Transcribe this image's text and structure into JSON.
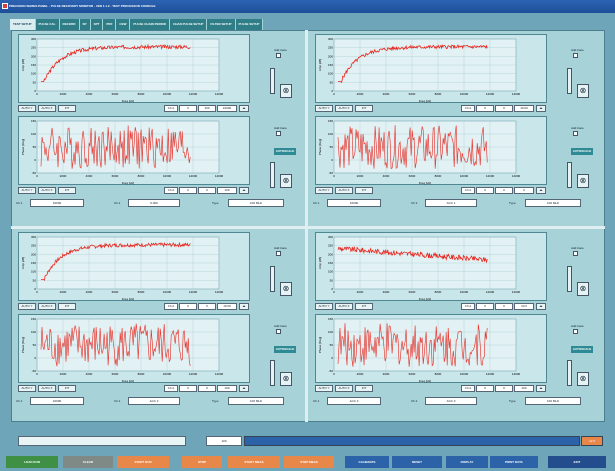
{
  "window": {
    "title": "PRECISION SERIES PANEL - PULSE RECOVERY MONITOR - VER 1.1.2 - TEST PROCESSOR CONSOLE"
  },
  "tabs": [
    "TEST SETUP",
    "PULSE CAL",
    "RECORD",
    "SP",
    "SPT",
    "PRF",
    "CEW",
    "PULSE CHAIN PERIOD",
    "CHAN PULSE SETUP",
    "FILTER SETUP",
    "PULSE SETUP"
  ],
  "colors": {
    "trace": "#e8261e",
    "panel": "#a7d2d8",
    "plot_bg": "#c9e6ea",
    "accent_teal": "#2e8a94",
    "green": "#3f8f45",
    "orange": "#e8874a",
    "blue": "#2c63a8"
  },
  "icons": {
    "zoom": "magnifier-cross-icon",
    "checkbox": "checkbox-icon"
  },
  "labels": {
    "check_a": "Add trace",
    "check_b": "Add trace",
    "autoscale": "AUTOSCALE",
    "f1": "Ch 1",
    "f2": "Ch 2",
    "f3": "Type"
  },
  "controls": {
    "btn1": "AUTO Y",
    "btn2": "AUTO X",
    "btn3": "FIT",
    "spin1": "Ch A"
  },
  "quadrants": [
    {
      "spins": [
        "0",
        "100",
        "10000"
      ],
      "spins2": [
        "0",
        "0",
        "100"
      ],
      "info": [
        "10000",
        "0.000",
        "100 MHz"
      ]
    },
    {
      "spins": [
        "0",
        "0",
        "10.00"
      ],
      "spins2": [
        "0",
        "0",
        "0"
      ],
      "info": [
        "10000",
        "ACC 1",
        "100 MHz"
      ]
    },
    {
      "spins": [
        "0",
        "0",
        "10.00"
      ],
      "spins2": [
        "0",
        "0",
        "100"
      ],
      "info": [
        "10000",
        "ACC 2",
        "100 MHz"
      ]
    },
    {
      "spins": [
        "0",
        "0",
        "10.0"
      ],
      "spins2": [
        "0",
        "0",
        "100"
      ],
      "info": [
        "ACC 3",
        "ACC 3",
        "100 MHz"
      ]
    }
  ],
  "status": {
    "left": "",
    "mid": "100",
    "right": "12.5"
  },
  "bottom_buttons": [
    "LOAD RUN",
    "CLEAR",
    "START RUN",
    "STOP",
    "START MEAS",
    "STOP MEAS",
    "CALIBRATE",
    "RESET",
    "DISPLAY",
    "PRINT DATA",
    "EXIT"
  ],
  "chart_data": [
    {
      "type": "line",
      "series_kind": "rise",
      "ylim": [
        0,
        300
      ],
      "xlim": [
        0,
        14000
      ],
      "yticks": [
        "300",
        "250",
        "200",
        "150",
        "100",
        "50",
        "0"
      ],
      "xticks": [
        "0",
        "2000",
        "4000",
        "6000",
        "8000",
        "10000",
        "12000",
        "14000"
      ],
      "ylabel": "Amp [dB]",
      "xlabel": "Freq [Hz]"
    },
    {
      "type": "line",
      "series_kind": "noise",
      "ylim": [
        -50,
        150
      ],
      "xlim": [
        0,
        14000
      ],
      "yticks": [
        "150",
        "100",
        "50",
        "0",
        "-50"
      ],
      "xticks": [
        "0",
        "2000",
        "4000",
        "6000",
        "8000",
        "10000",
        "12000",
        "14000"
      ],
      "ylabel": "Phase [Deg]",
      "xlabel": "Freq [Hz]"
    },
    {
      "type": "line",
      "series_kind": "rise",
      "ylim": [
        0,
        300
      ],
      "xlim": [
        0,
        14000
      ],
      "yticks": [
        "300",
        "250",
        "200",
        "150",
        "100",
        "50",
        "0"
      ],
      "xticks": [
        "0",
        "2000",
        "4000",
        "6000",
        "8000",
        "10000",
        "12000",
        "14000"
      ],
      "ylabel": "Amp [dB]",
      "xlabel": "Freq [Hz]"
    },
    {
      "type": "line",
      "series_kind": "noise",
      "ylim": [
        -50,
        150
      ],
      "xlim": [
        0,
        14000
      ],
      "yticks": [
        "150",
        "100",
        "50",
        "0",
        "-50"
      ],
      "xticks": [
        "0",
        "2000",
        "4000",
        "6000",
        "8000",
        "10000",
        "12000",
        "14000"
      ],
      "ylabel": "Phase [Deg]",
      "xlabel": "Freq [Hz]"
    },
    {
      "type": "line",
      "series_kind": "rise",
      "ylim": [
        0,
        300
      ],
      "xlim": [
        0,
        14000
      ],
      "yticks": [
        "300",
        "250",
        "200",
        "150",
        "100",
        "50",
        "0"
      ],
      "xticks": [
        "0",
        "2000",
        "4000",
        "6000",
        "8000",
        "10000",
        "12000",
        "14000"
      ],
      "ylabel": "Amp [dB]",
      "xlabel": "Freq [Hz]"
    },
    {
      "type": "line",
      "series_kind": "noise",
      "ylim": [
        -50,
        150
      ],
      "xlim": [
        0,
        14000
      ],
      "yticks": [
        "150",
        "100",
        "50",
        "0",
        "-50"
      ],
      "xticks": [
        "0",
        "2000",
        "4000",
        "6000",
        "8000",
        "10000",
        "12000",
        "14000"
      ],
      "ylabel": "Phase [Deg]",
      "xlabel": "Freq [Hz]"
    },
    {
      "type": "line",
      "series_kind": "fall",
      "ylim": [
        0,
        300
      ],
      "xlim": [
        0,
        14000
      ],
      "yticks": [
        "300",
        "250",
        "200",
        "150",
        "100",
        "50",
        "0"
      ],
      "xticks": [
        "0",
        "2000",
        "4000",
        "6000",
        "8000",
        "10000",
        "12000",
        "14000"
      ],
      "ylabel": "Amp [dB]",
      "xlabel": "Freq [Hz]"
    },
    {
      "type": "line",
      "series_kind": "noise",
      "ylim": [
        -50,
        150
      ],
      "xlim": [
        0,
        14000
      ],
      "yticks": [
        "150",
        "100",
        "50",
        "0",
        "-50"
      ],
      "xticks": [
        "0",
        "2000",
        "4000",
        "6000",
        "8000",
        "10000",
        "12000",
        "14000"
      ],
      "ylabel": "Phase [Deg]",
      "xlabel": "Freq [Hz]"
    }
  ]
}
